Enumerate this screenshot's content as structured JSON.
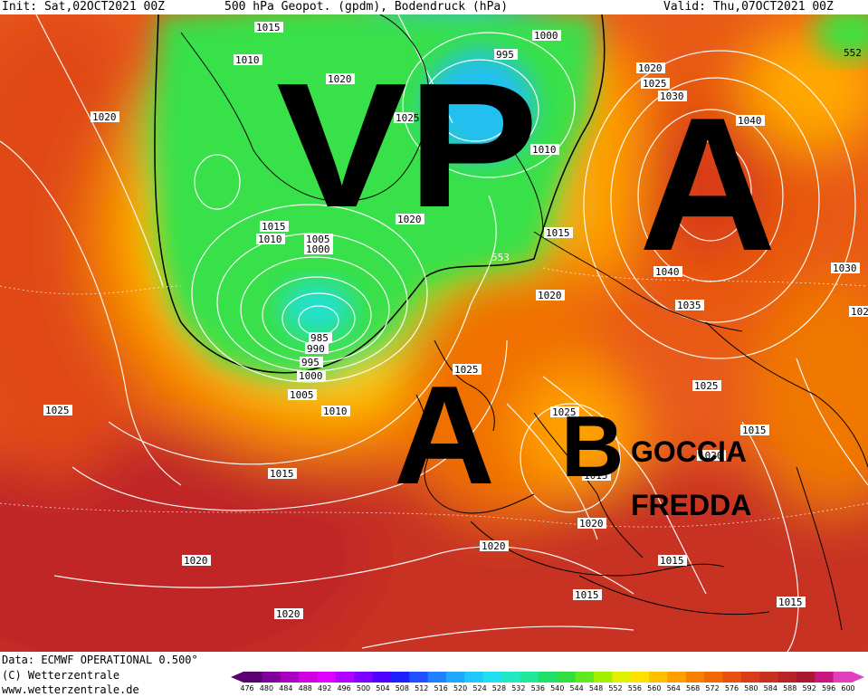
{
  "header": {
    "init": "Init: Sat,02OCT2021 00Z",
    "title": "500 hPa Geopot. (gpdm), Bodendruck (hPa)",
    "valid": "Valid: Thu,07OCT2021 00Z"
  },
  "footer": {
    "data_source": "Data: ECMWF OPERATIONAL 0.500°",
    "copyright": "(C) Wetterzentrale",
    "website": "www.wetterzentrale.de"
  },
  "colorbar": {
    "ticks": [
      "476",
      "480",
      "484",
      "488",
      "492",
      "496",
      "500",
      "504",
      "508",
      "512",
      "516",
      "520",
      "524",
      "528",
      "532",
      "536",
      "540",
      "544",
      "548",
      "552",
      "556",
      "560",
      "564",
      "568",
      "572",
      "576",
      "580",
      "584",
      "588",
      "592",
      "596",
      "600"
    ],
    "colors": [
      "#5a0070",
      "#80009a",
      "#a800c0",
      "#d000e0",
      "#e000ff",
      "#b000ff",
      "#8000ff",
      "#5000ff",
      "#2020ff",
      "#2050ff",
      "#2080ff",
      "#20a8ff",
      "#20c8ff",
      "#20e0f0",
      "#20e8c8",
      "#20e898",
      "#20e068",
      "#30e040",
      "#60e820",
      "#a0f000",
      "#e0f000",
      "#ffe000",
      "#ffc000",
      "#ffa000",
      "#f88000",
      "#f06800",
      "#e85010",
      "#d83c18",
      "#c83020",
      "#b82424",
      "#a81830",
      "#c81880",
      "#e040c0"
    ]
  },
  "annotations": {
    "vp": "VP",
    "high_atlantic": "A",
    "high_scandinavia": "A",
    "low_italy": "B",
    "goccia": "GOCCIA",
    "fredda": "FREDDA"
  },
  "isobar_labels": [
    "1015",
    "1010",
    "1020",
    "1020",
    "995",
    "1000",
    "1025",
    "1010",
    "1020",
    "1025",
    "1030",
    "1040",
    "1015",
    "1010",
    "1005",
    "1000",
    "1020",
    "1015",
    "553",
    "552",
    "1040",
    "1035",
    "1030",
    "1020",
    "985",
    "990",
    "995",
    "1000",
    "1005",
    "1010",
    "1025",
    "1025",
    "1025",
    "1015",
    "1015",
    "1015",
    "1020",
    "1020",
    "1015",
    "1020",
    "1015",
    "1020",
    "1015",
    "1020",
    "1025",
    "102"
  ]
}
